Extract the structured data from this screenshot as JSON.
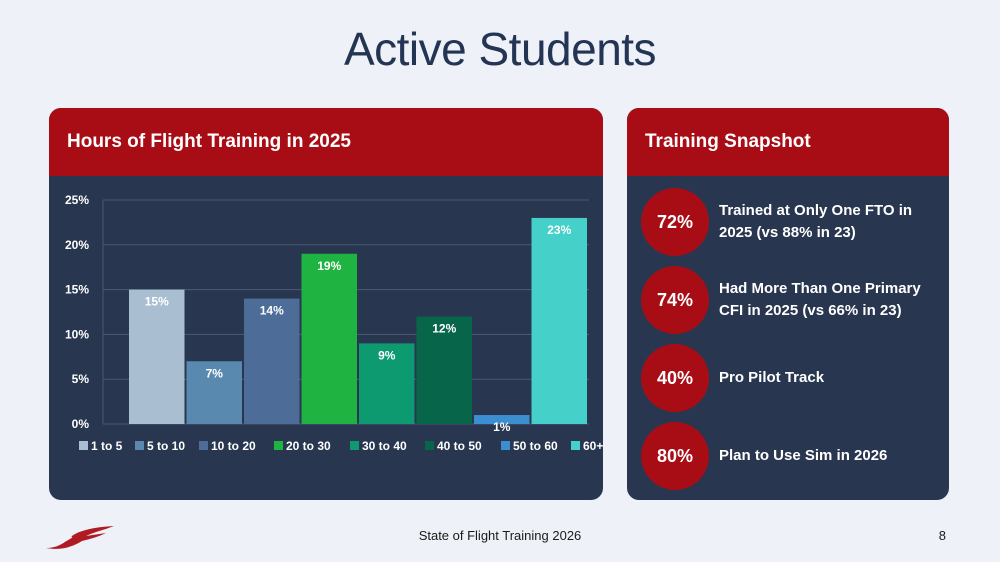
{
  "page": {
    "title": "Active Students",
    "footer": "State of Flight Training 2026",
    "page_number": "8"
  },
  "chart_card": {
    "title": "Hours of Flight Training in 2025"
  },
  "chart_data": {
    "type": "bar",
    "categories": [
      "1 to 5",
      "5 to 10",
      "10 to 20",
      "20 to 30",
      "30 to 40",
      "40 to 50",
      "50 to 60",
      "60+"
    ],
    "values": [
      15,
      7,
      14,
      19,
      9,
      12,
      1,
      23
    ],
    "value_labels": [
      "15%",
      "7%",
      "14%",
      "19%",
      "9%",
      "12%",
      "1%",
      "23%"
    ],
    "colors": [
      "#a9bfd1",
      "#5a89b0",
      "#4d6d98",
      "#1fb341",
      "#0d9a70",
      "#076649",
      "#3b8fd1",
      "#45d0c9"
    ],
    "y_ticks": [
      "0%",
      "5%",
      "10%",
      "15%",
      "20%",
      "25%"
    ],
    "ylim": [
      0,
      25
    ],
    "y_unit": "%",
    "grid": true,
    "legend": "bottom"
  },
  "snapshot_card": {
    "title": "Training Snapshot",
    "items": [
      {
        "value": "72%",
        "text": "Trained at Only One FTO in 2025 (vs 88% in 23)"
      },
      {
        "value": "74%",
        "text": "Had More Than One Primary CFI in 2025 (vs 66% in 23)"
      },
      {
        "value": "40%",
        "text": "Pro Pilot Track"
      },
      {
        "value": "80%",
        "text": "Plan to Use Sim in 2026"
      }
    ]
  },
  "colors": {
    "accent_red": "#a80d16",
    "card_bg": "#28364f",
    "page_bg": "#eef2f8",
    "title_color": "#243553"
  },
  "logo": {
    "icon": "red-wing-logo-icon"
  }
}
